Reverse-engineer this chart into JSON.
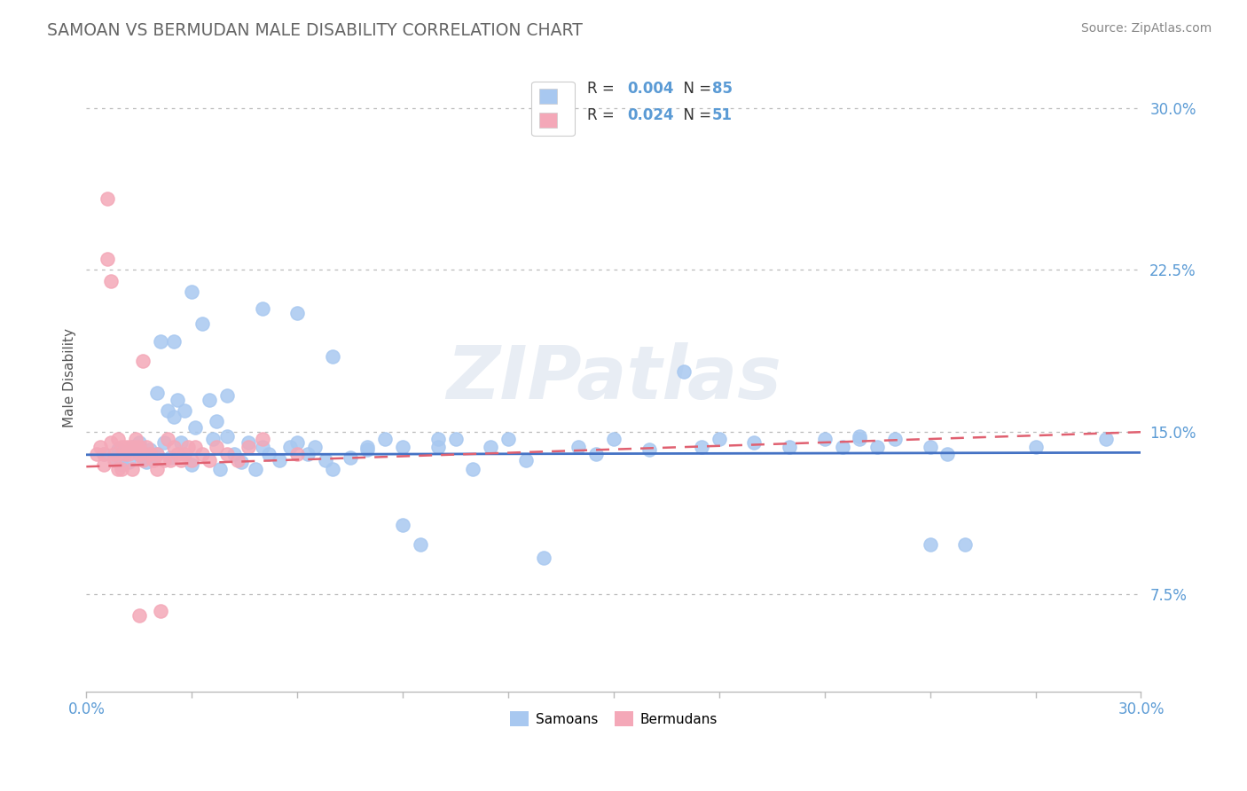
{
  "title": "SAMOAN VS BERMUDAN MALE DISABILITY CORRELATION CHART",
  "source": "Source: ZipAtlas.com",
  "ylabel": "Male Disability",
  "xlim": [
    0.0,
    0.3
  ],
  "ylim": [
    0.03,
    0.32
  ],
  "ytick_vals": [
    0.075,
    0.15,
    0.225,
    0.3
  ],
  "ytick_labels": [
    "7.5%",
    "15.0%",
    "22.5%",
    "30.0%"
  ],
  "xtick_vals": [
    0.0,
    0.03,
    0.06,
    0.09,
    0.12,
    0.15,
    0.18,
    0.21,
    0.24,
    0.27,
    0.3
  ],
  "samoan_color": "#a8c8f0",
  "bermudan_color": "#f4a8b8",
  "samoan_line_color": "#4472c4",
  "bermudan_line_color": "#e06070",
  "watermark": "ZIPatlas",
  "title_color": "#666666",
  "source_color": "#888888",
  "tick_color": "#5b9bd5",
  "legend_r1_text": "R = 0.004   N = 85",
  "legend_r2_text": "R = 0.024   N = 51",
  "samoans_x": [
    0.005,
    0.008,
    0.009,
    0.01,
    0.012,
    0.013,
    0.015,
    0.016,
    0.017,
    0.018,
    0.019,
    0.02,
    0.021,
    0.022,
    0.023,
    0.024,
    0.025,
    0.026,
    0.027,
    0.028,
    0.03,
    0.031,
    0.033,
    0.035,
    0.036,
    0.037,
    0.038,
    0.04,
    0.042,
    0.044,
    0.046,
    0.048,
    0.05,
    0.052,
    0.055,
    0.058,
    0.06,
    0.063,
    0.065,
    0.068,
    0.07,
    0.075,
    0.08,
    0.085,
    0.09,
    0.095,
    0.1,
    0.105,
    0.11,
    0.115,
    0.12,
    0.125,
    0.13,
    0.14,
    0.145,
    0.15,
    0.16,
    0.17,
    0.175,
    0.18,
    0.19,
    0.2,
    0.21,
    0.215,
    0.22,
    0.225,
    0.23,
    0.24,
    0.245,
    0.25,
    0.015,
    0.02,
    0.025,
    0.03,
    0.04,
    0.05,
    0.06,
    0.07,
    0.08,
    0.09,
    0.1,
    0.22,
    0.24,
    0.27,
    0.29
  ],
  "samoans_y": [
    0.14,
    0.138,
    0.142,
    0.135,
    0.136,
    0.143,
    0.14,
    0.138,
    0.136,
    0.142,
    0.139,
    0.14,
    0.192,
    0.145,
    0.16,
    0.138,
    0.157,
    0.165,
    0.145,
    0.16,
    0.135,
    0.152,
    0.2,
    0.165,
    0.147,
    0.155,
    0.133,
    0.148,
    0.14,
    0.136,
    0.145,
    0.133,
    0.143,
    0.14,
    0.137,
    0.143,
    0.145,
    0.14,
    0.143,
    0.137,
    0.133,
    0.138,
    0.142,
    0.147,
    0.107,
    0.098,
    0.143,
    0.147,
    0.133,
    0.143,
    0.147,
    0.137,
    0.092,
    0.143,
    0.14,
    0.147,
    0.142,
    0.178,
    0.143,
    0.147,
    0.145,
    0.143,
    0.147,
    0.143,
    0.147,
    0.143,
    0.147,
    0.143,
    0.14,
    0.098,
    0.145,
    0.168,
    0.192,
    0.215,
    0.167,
    0.207,
    0.205,
    0.185,
    0.143,
    0.143,
    0.147,
    0.148,
    0.098,
    0.143,
    0.147
  ],
  "bermudans_x": [
    0.003,
    0.004,
    0.005,
    0.005,
    0.006,
    0.006,
    0.007,
    0.007,
    0.008,
    0.008,
    0.009,
    0.009,
    0.01,
    0.01,
    0.011,
    0.011,
    0.012,
    0.012,
    0.013,
    0.013,
    0.014,
    0.014,
    0.015,
    0.015,
    0.016,
    0.016,
    0.017,
    0.018,
    0.019,
    0.02,
    0.021,
    0.022,
    0.023,
    0.024,
    0.025,
    0.026,
    0.027,
    0.028,
    0.029,
    0.03,
    0.031,
    0.033,
    0.035,
    0.037,
    0.04,
    0.043,
    0.046,
    0.05,
    0.06,
    0.02,
    0.015
  ],
  "bermudans_y": [
    0.14,
    0.143,
    0.14,
    0.135,
    0.258,
    0.23,
    0.22,
    0.145,
    0.14,
    0.137,
    0.133,
    0.147,
    0.133,
    0.143,
    0.14,
    0.143,
    0.14,
    0.143,
    0.133,
    0.143,
    0.147,
    0.143,
    0.14,
    0.143,
    0.183,
    0.137,
    0.143,
    0.14,
    0.137,
    0.14,
    0.067,
    0.137,
    0.147,
    0.137,
    0.143,
    0.14,
    0.137,
    0.14,
    0.143,
    0.137,
    0.143,
    0.14,
    0.137,
    0.143,
    0.14,
    0.137,
    0.143,
    0.147,
    0.14,
    0.133,
    0.065
  ]
}
